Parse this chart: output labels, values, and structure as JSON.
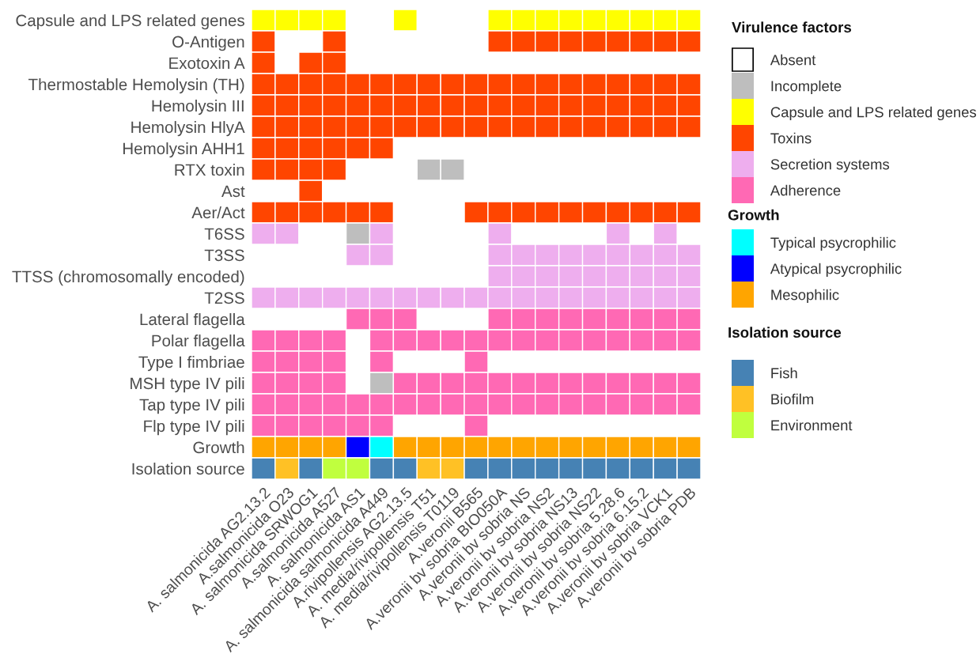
{
  "chart_data": {
    "type": "heatmap",
    "categories": [
      "A. salmonicida AG2.13.2",
      "A.salmonicida O23",
      "A. salmonicida SRWOG1",
      "A.salmonicida A527",
      "A. salmonicida AS1",
      "A. salmonicida salmonicida A449",
      "A.rivipollensis AG2.13.5",
      "A. media/rivipollensis T51",
      "A. media/rivipollensis T0119",
      "A.veronii B565",
      "A.veronii bv sobria BIO050A",
      "A.veronii bv sobria NS",
      "A.veronii bv sobria NS2",
      "A.veronii bv sobria NS13",
      "A.veronii bv sobria NS22",
      "A.veronii bv sobria 5.28.6",
      "A.veronii bv sobria 6.15.2",
      "A.veronii bv sobria VCK1",
      "A.veronii bv sobria PDB"
    ],
    "y_categories": [
      "Capsule and LPS related genes",
      "O-Antigen",
      "Exotoxin A",
      "Thermostable Hemolysin (TH)",
      "Hemolysin III",
      "Hemolysin HlyA",
      "Hemolysin AHH1",
      "RTX toxin",
      "Ast",
      "Aer/Act",
      "T6SS",
      "T3SS",
      "TTSS (chromosomally encoded)",
      "T2SS",
      "Lateral flagella",
      "Polar flagella",
      "Type I fimbriae",
      "MSH type IV pili",
      "Tap type IV pili",
      "Flp type IV pili",
      "Growth",
      "Isolation source"
    ],
    "cells": [
      [
        2,
        2,
        2,
        2,
        null,
        null,
        2,
        null,
        null,
        null,
        2,
        2,
        2,
        2,
        2,
        2,
        2,
        2,
        2
      ],
      [
        3,
        null,
        null,
        3,
        null,
        null,
        null,
        null,
        null,
        null,
        3,
        3,
        3,
        3,
        3,
        3,
        3,
        3,
        3
      ],
      [
        3,
        null,
        3,
        3,
        null,
        null,
        null,
        null,
        null,
        null,
        null,
        null,
        null,
        null,
        null,
        null,
        null,
        null,
        null
      ],
      [
        3,
        3,
        3,
        3,
        3,
        3,
        3,
        3,
        3,
        3,
        3,
        3,
        3,
        3,
        3,
        3,
        3,
        3,
        3
      ],
      [
        3,
        3,
        3,
        3,
        3,
        3,
        3,
        3,
        3,
        3,
        3,
        3,
        3,
        3,
        3,
        3,
        3,
        3,
        3
      ],
      [
        3,
        3,
        3,
        3,
        3,
        3,
        3,
        3,
        3,
        3,
        3,
        3,
        3,
        3,
        3,
        3,
        3,
        3,
        3
      ],
      [
        3,
        3,
        3,
        3,
        3,
        3,
        null,
        null,
        null,
        null,
        null,
        null,
        null,
        null,
        null,
        null,
        null,
        null,
        null
      ],
      [
        3,
        3,
        3,
        3,
        null,
        null,
        null,
        1,
        1,
        null,
        null,
        null,
        null,
        null,
        null,
        null,
        null,
        null,
        null
      ],
      [
        null,
        null,
        3,
        null,
        null,
        null,
        null,
        null,
        null,
        null,
        null,
        null,
        null,
        null,
        null,
        null,
        null,
        null,
        null
      ],
      [
        3,
        3,
        3,
        3,
        3,
        3,
        null,
        null,
        null,
        3,
        3,
        3,
        3,
        3,
        3,
        3,
        3,
        3,
        3
      ],
      [
        4,
        4,
        null,
        null,
        1,
        4,
        null,
        null,
        null,
        null,
        4,
        null,
        null,
        null,
        null,
        4,
        null,
        4,
        null
      ],
      [
        null,
        null,
        null,
        null,
        4,
        4,
        null,
        null,
        null,
        null,
        4,
        4,
        4,
        4,
        4,
        4,
        4,
        4,
        4
      ],
      [
        null,
        null,
        null,
        null,
        null,
        null,
        null,
        null,
        null,
        null,
        4,
        4,
        4,
        4,
        4,
        4,
        4,
        4,
        4
      ],
      [
        4,
        4,
        4,
        4,
        4,
        4,
        4,
        4,
        4,
        4,
        4,
        4,
        4,
        4,
        4,
        4,
        4,
        4,
        4
      ],
      [
        null,
        null,
        null,
        null,
        5,
        5,
        5,
        null,
        null,
        null,
        5,
        5,
        5,
        5,
        5,
        5,
        5,
        5,
        5
      ],
      [
        5,
        5,
        5,
        5,
        null,
        5,
        5,
        5,
        5,
        5,
        5,
        5,
        5,
        5,
        5,
        5,
        5,
        5,
        5
      ],
      [
        5,
        5,
        5,
        5,
        null,
        5,
        null,
        null,
        null,
        5,
        null,
        null,
        null,
        null,
        null,
        null,
        null,
        null,
        null
      ],
      [
        5,
        5,
        5,
        5,
        null,
        1,
        5,
        5,
        5,
        5,
        5,
        5,
        5,
        5,
        5,
        5,
        5,
        5,
        5
      ],
      [
        5,
        5,
        5,
        5,
        5,
        5,
        5,
        5,
        5,
        5,
        5,
        5,
        5,
        5,
        5,
        5,
        5,
        5,
        5
      ],
      [
        5,
        5,
        5,
        5,
        5,
        5,
        null,
        null,
        null,
        5,
        null,
        null,
        null,
        null,
        null,
        null,
        null,
        null,
        null
      ],
      [
        9,
        9,
        9,
        9,
        8,
        7,
        9,
        9,
        9,
        9,
        9,
        9,
        9,
        9,
        9,
        9,
        9,
        9,
        9
      ],
      [
        12,
        13,
        12,
        14,
        14,
        12,
        12,
        13,
        13,
        12,
        12,
        12,
        12,
        12,
        12,
        12,
        12,
        12,
        12
      ]
    ],
    "colors": [
      "#ffffff",
      "#bebebe",
      "#ffff00",
      "#ff4500",
      "#eeaeee",
      "#ff69b4",
      null,
      "#00ffff",
      "#0000ff",
      "#ffa500",
      null,
      null,
      "#4682b4",
      "#ffc125",
      "#c0ff3e"
    ],
    "clim": [
      -0.5,
      14.5
    ],
    "cticks": [
      {
        "value": 0,
        "label": "Absent"
      },
      {
        "value": 1,
        "label": "Incomplete"
      },
      {
        "value": 2,
        "label": "Capsule and LPS related genes"
      },
      {
        "value": 3,
        "label": "Toxins"
      },
      {
        "value": 4,
        "label": "Secretion systems"
      },
      {
        "value": 5,
        "label": "Adherence"
      },
      {
        "value": 7,
        "label": "Typical psycrophilic"
      },
      {
        "value": 8,
        "label": "Atypical psycrophilic"
      },
      {
        "value": 9,
        "label": "Mesophilic"
      },
      {
        "value": 12,
        "label": "Fish"
      },
      {
        "value": 13,
        "label": "Biofilm"
      },
      {
        "value": 14,
        "label": "Environment"
      }
    ],
    "clabel": "Virulence factors",
    "annotations": [
      "Growth",
      "Isolation source"
    ]
  }
}
